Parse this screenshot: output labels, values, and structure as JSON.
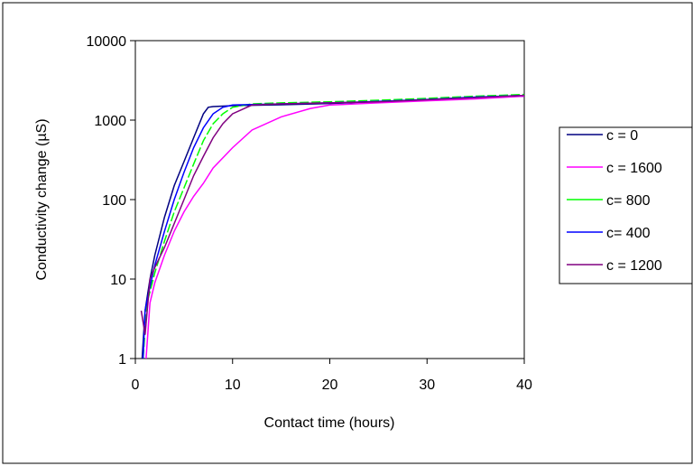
{
  "chart_data": {
    "type": "line",
    "title": "",
    "xlabel": "Contact time (hours)",
    "ylabel": "Conductivity change (µS)",
    "xlim": [
      0,
      40
    ],
    "ylim": [
      1,
      10000
    ],
    "y_scale": "log",
    "x_ticks": [
      "0",
      "10",
      "20",
      "30",
      "40"
    ],
    "y_ticks": [
      "1",
      "10",
      "100",
      "1000",
      "10000"
    ],
    "grid": false,
    "legend_position": "right",
    "series": [
      {
        "name": "c = 0",
        "color": "#000080",
        "points": [
          [
            0.7,
            1
          ],
          [
            1.0,
            4
          ],
          [
            1.5,
            10
          ],
          [
            2,
            20
          ],
          [
            3,
            60
          ],
          [
            4,
            150
          ],
          [
            5,
            300
          ],
          [
            6,
            600
          ],
          [
            7,
            1200
          ],
          [
            7.5,
            1450
          ],
          [
            8,
            1480
          ],
          [
            10,
            1520
          ],
          [
            15,
            1560
          ],
          [
            20,
            1620
          ],
          [
            25,
            1700
          ],
          [
            30,
            1800
          ],
          [
            35,
            1920
          ],
          [
            40,
            2000
          ]
        ]
      },
      {
        "name": "c = 1600",
        "color": "#ff00ff",
        "points": [
          [
            1.1,
            1
          ],
          [
            1.5,
            5
          ],
          [
            2,
            9
          ],
          [
            3,
            20
          ],
          [
            4,
            40
          ],
          [
            5,
            70
          ],
          [
            6,
            110
          ],
          [
            7,
            160
          ],
          [
            8,
            250
          ],
          [
            10,
            450
          ],
          [
            12,
            750
          ],
          [
            15,
            1100
          ],
          [
            18,
            1400
          ],
          [
            20,
            1550
          ],
          [
            25,
            1650
          ],
          [
            30,
            1750
          ],
          [
            35,
            1850
          ],
          [
            40,
            2000
          ]
        ]
      },
      {
        "name": "c= 800",
        "color": "#00ff00",
        "points": [
          [
            0.8,
            1
          ],
          [
            1.2,
            5
          ],
          [
            2,
            12
          ],
          [
            3,
            30
          ],
          [
            4,
            70
          ],
          [
            5,
            140
          ],
          [
            6,
            280
          ],
          [
            7,
            550
          ],
          [
            8,
            900
          ],
          [
            9,
            1200
          ],
          [
            10,
            1450
          ],
          [
            12,
            1600
          ],
          [
            15,
            1650
          ],
          [
            20,
            1700
          ],
          [
            25,
            1780
          ],
          [
            30,
            1880
          ],
          [
            35,
            2000
          ],
          [
            40,
            2100
          ]
        ]
      },
      {
        "name": "c= 400",
        "color": "#0000ff",
        "points": [
          [
            0.8,
            1
          ],
          [
            1.0,
            4
          ],
          [
            1.5,
            8
          ],
          [
            2,
            15
          ],
          [
            3,
            40
          ],
          [
            4,
            100
          ],
          [
            5,
            220
          ],
          [
            6,
            450
          ],
          [
            7,
            800
          ],
          [
            8,
            1200
          ],
          [
            9,
            1450
          ],
          [
            10,
            1550
          ],
          [
            15,
            1600
          ],
          [
            20,
            1650
          ],
          [
            25,
            1720
          ],
          [
            30,
            1820
          ],
          [
            35,
            1950
          ],
          [
            40,
            2050
          ]
        ]
      },
      {
        "name": "c = 1200",
        "color": "#800080",
        "points": [
          [
            0.6,
            4
          ],
          [
            1.0,
            2
          ],
          [
            1.5,
            10
          ],
          [
            2,
            14
          ],
          [
            3,
            25
          ],
          [
            4,
            50
          ],
          [
            5,
            100
          ],
          [
            6,
            200
          ],
          [
            7,
            350
          ],
          [
            8,
            600
          ],
          [
            9,
            900
          ],
          [
            10,
            1200
          ],
          [
            12,
            1550
          ],
          [
            15,
            1600
          ],
          [
            20,
            1650
          ],
          [
            25,
            1700
          ],
          [
            30,
            1800
          ],
          [
            35,
            1920
          ],
          [
            40,
            2050
          ]
        ]
      }
    ]
  }
}
